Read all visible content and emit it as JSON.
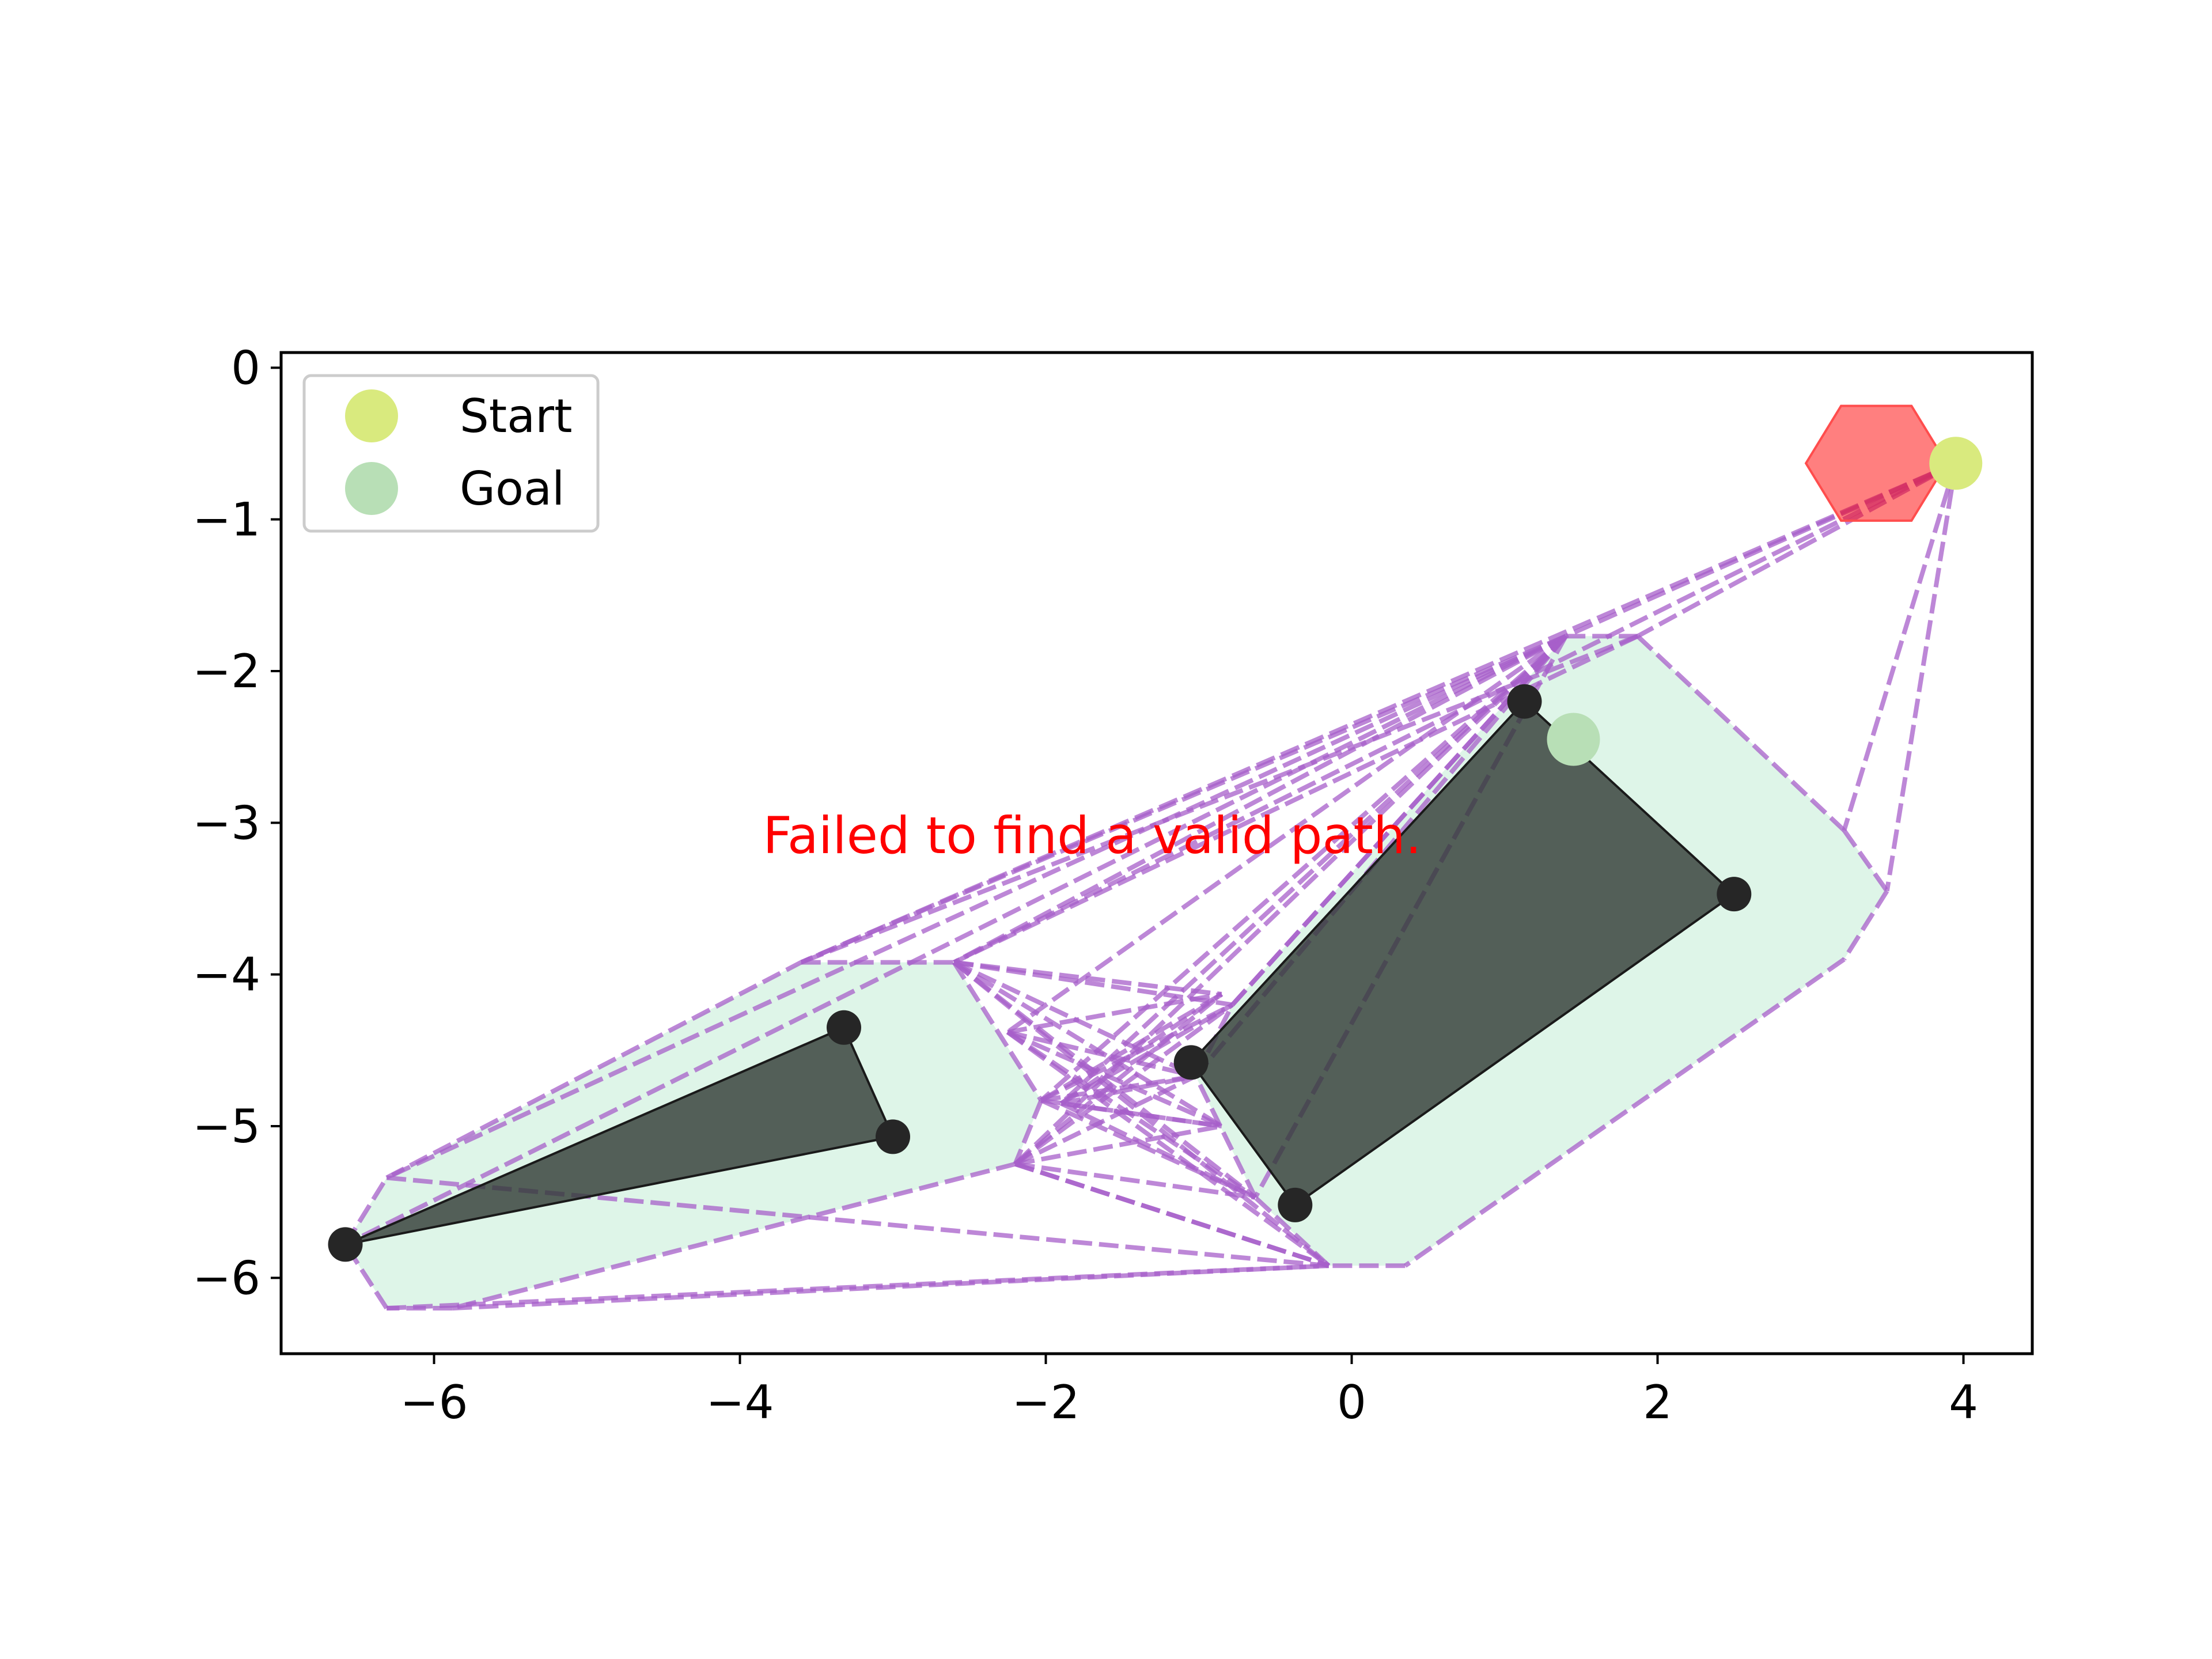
{
  "chart_data": {
    "type": "scatter",
    "title": "",
    "xlabel": "",
    "ylabel": "",
    "xlim": [
      -7.0,
      4.45
    ],
    "ylim": [
      -6.5,
      0.1
    ],
    "xticks": [
      -6,
      -4,
      -2,
      0,
      2,
      4
    ],
    "yticks": [
      0,
      -1,
      -2,
      -3,
      -4,
      -5,
      -6
    ],
    "xtick_labels": [
      "−6",
      "−4",
      "−2",
      "0",
      "2",
      "4"
    ],
    "ytick_labels": [
      "0",
      "−1",
      "−2",
      "−3",
      "−4",
      "−5",
      "−6"
    ],
    "grid": false,
    "legend": {
      "location": "top-left",
      "entries": [
        {
          "label": "Start",
          "color": "#d9ea7e"
        },
        {
          "label": "Goal",
          "color": "#b8dfb6"
        }
      ]
    },
    "annotation": {
      "text": "Failed to find a valid path.",
      "x": -3.85,
      "y": -3.2,
      "color": "#ff0000"
    },
    "start": {
      "x": 3.95,
      "y": -0.63
    },
    "goal": {
      "x": 1.45,
      "y": -2.45
    },
    "agent": {
      "shape": "hexagon",
      "center": [
        3.43,
        -0.63
      ],
      "radius": 0.46,
      "color": "#ff7b7b"
    },
    "obstacles": [
      {
        "name": "triangle",
        "vertices": [
          [
            -6.58,
            -5.78
          ],
          [
            -3.32,
            -4.35
          ],
          [
            -3.0,
            -5.07
          ]
        ]
      },
      {
        "name": "quadrilateral",
        "vertices": [
          [
            1.13,
            -2.2
          ],
          [
            2.5,
            -3.47
          ],
          [
            -0.37,
            -5.52
          ],
          [
            -1.05,
            -4.58
          ]
        ]
      }
    ],
    "inflated_regions": [
      {
        "name": "triangle-buffer",
        "vertices": [
          [
            -6.31,
            -5.34
          ],
          [
            -3.6,
            -3.92
          ],
          [
            -2.6,
            -3.92
          ],
          [
            -2.03,
            -4.83
          ],
          [
            -2.2,
            -5.25
          ],
          [
            -5.88,
            -6.2
          ],
          [
            -6.31,
            -6.2
          ],
          [
            -6.58,
            -5.78
          ]
        ]
      },
      {
        "name": "quadrilateral-buffer",
        "vertices": [
          [
            1.4,
            -1.77
          ],
          [
            1.87,
            -1.77
          ],
          [
            3.22,
            -3.05
          ],
          [
            3.5,
            -3.45
          ],
          [
            3.22,
            -3.9
          ],
          [
            0.35,
            -5.92
          ],
          [
            -0.15,
            -5.92
          ],
          [
            -0.63,
            -5.47
          ],
          [
            -1.02,
            -4.67
          ],
          [
            -0.78,
            -4.2
          ]
        ]
      }
    ],
    "visibility_graph": {
      "nodes": [
        [
          3.95,
          -0.63
        ],
        [
          1.4,
          -1.77
        ],
        [
          1.87,
          -1.77
        ],
        [
          3.22,
          -3.05
        ],
        [
          3.5,
          -3.45
        ],
        [
          3.22,
          -3.9
        ],
        [
          0.35,
          -5.92
        ],
        [
          -0.15,
          -5.92
        ],
        [
          -0.63,
          -5.47
        ],
        [
          -1.02,
          -4.67
        ],
        [
          -0.78,
          -4.2
        ],
        [
          -6.31,
          -5.34
        ],
        [
          -3.6,
          -3.92
        ],
        [
          -2.6,
          -3.92
        ],
        [
          -2.03,
          -4.83
        ],
        [
          -2.2,
          -5.25
        ],
        [
          -5.88,
          -6.2
        ],
        [
          -6.31,
          -6.2
        ],
        [
          -6.58,
          -5.78
        ],
        [
          -2.25,
          -4.38
        ],
        [
          -0.85,
          -4.13
        ],
        [
          -0.85,
          -5.0
        ],
        [
          -1.9,
          -4.85
        ]
      ],
      "edges": [
        [
          0,
          1
        ],
        [
          0,
          2
        ],
        [
          0,
          3
        ],
        [
          0,
          4
        ],
        [
          0,
          12
        ],
        [
          0,
          13
        ],
        [
          1,
          2
        ],
        [
          2,
          3
        ],
        [
          3,
          4
        ],
        [
          4,
          5
        ],
        [
          5,
          6
        ],
        [
          6,
          7
        ],
        [
          7,
          8
        ],
        [
          8,
          9
        ],
        [
          9,
          10
        ],
        [
          10,
          1
        ],
        [
          11,
          12
        ],
        [
          12,
          13
        ],
        [
          13,
          14
        ],
        [
          14,
          15
        ],
        [
          15,
          16
        ],
        [
          16,
          17
        ],
        [
          17,
          18
        ],
        [
          18,
          11
        ],
        [
          1,
          11
        ],
        [
          1,
          12
        ],
        [
          1,
          13
        ],
        [
          1,
          14
        ],
        [
          1,
          15
        ],
        [
          1,
          18
        ],
        [
          2,
          13
        ],
        [
          2,
          12
        ],
        [
          13,
          9
        ],
        [
          13,
          10
        ],
        [
          13,
          8
        ],
        [
          13,
          7
        ],
        [
          13,
          20
        ],
        [
          13,
          21
        ],
        [
          14,
          10
        ],
        [
          14,
          9
        ],
        [
          14,
          8
        ],
        [
          14,
          20
        ],
        [
          14,
          21
        ],
        [
          15,
          10
        ],
        [
          15,
          9
        ],
        [
          15,
          8
        ],
        [
          15,
          7
        ],
        [
          15,
          20
        ],
        [
          15,
          21
        ],
        [
          19,
          20
        ],
        [
          19,
          21
        ],
        [
          19,
          9
        ],
        [
          19,
          8
        ],
        [
          19,
          7
        ],
        [
          22,
          20
        ],
        [
          22,
          21
        ],
        [
          22,
          9
        ],
        [
          22,
          8
        ],
        [
          22,
          10
        ],
        [
          17,
          7
        ],
        [
          16,
          7
        ],
        [
          15,
          7
        ],
        [
          11,
          7
        ],
        [
          1,
          9
        ],
        [
          1,
          10
        ],
        [
          1,
          8
        ],
        [
          1,
          19
        ],
        [
          1,
          22
        ]
      ]
    }
  }
}
